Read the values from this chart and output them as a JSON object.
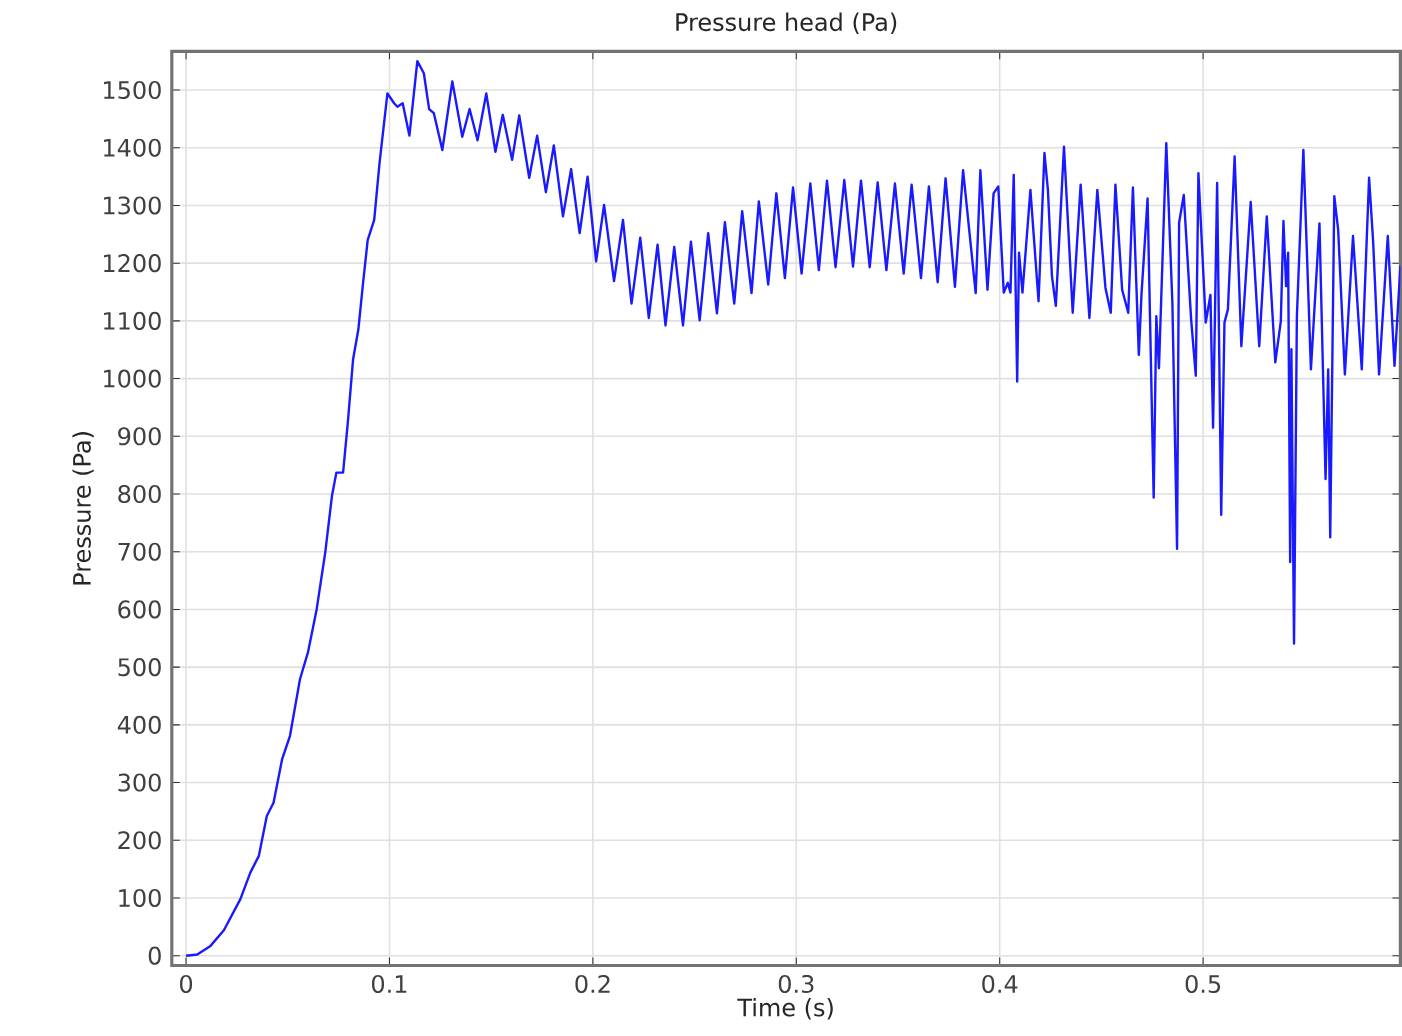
{
  "chart_data": {
    "type": "line",
    "title": "Pressure head (Pa)",
    "xlabel": "Time (s)",
    "ylabel": "Pressure (Pa)",
    "color": "#1a1aff",
    "grid": true,
    "marker": "none",
    "line_style": "solid",
    "xlim": [
      -0.007,
      0.597
    ],
    "ylim": [
      -17,
      1567
    ],
    "xticks": [
      0,
      0.1,
      0.2,
      0.3,
      0.4,
      0.5
    ],
    "yticks": [
      0,
      100,
      200,
      300,
      400,
      500,
      600,
      700,
      800,
      900,
      1000,
      1100,
      1200,
      1300,
      1400,
      1500
    ],
    "x": [
      0,
      0.0055,
      0.012,
      0.0186,
      0.0267,
      0.0316,
      0.0358,
      0.0397,
      0.043,
      0.0472,
      0.0511,
      0.056,
      0.0599,
      0.0642,
      0.0684,
      0.0717,
      0.0739,
      0.0772,
      0.0795,
      0.0821,
      0.0847,
      0.087,
      0.0893,
      0.0925,
      0.0951,
      0.099,
      0.1023,
      0.1039,
      0.1065,
      0.1098,
      0.1137,
      0.1169,
      0.1195,
      0.1218,
      0.126,
      0.1309,
      0.1358,
      0.1394,
      0.1433,
      0.1476,
      0.1521,
      0.1557,
      0.1603,
      0.1638,
      0.1687,
      0.1726,
      0.1769,
      0.1808,
      0.1853,
      0.1893,
      0.1935,
      0.1974,
      0.2016,
      0.2055,
      0.2104,
      0.2148,
      0.219,
      0.2233,
      0.2275,
      0.2318,
      0.2357,
      0.24,
      0.2443,
      0.2482,
      0.2525,
      0.2567,
      0.261,
      0.2649,
      0.2695,
      0.2734,
      0.278,
      0.2816,
      0.2862,
      0.2902,
      0.2944,
      0.2984,
      0.3026,
      0.3069,
      0.3111,
      0.3151,
      0.3193,
      0.3236,
      0.3279,
      0.3318,
      0.3361,
      0.34,
      0.3443,
      0.3485,
      0.3528,
      0.3567,
      0.3613,
      0.3652,
      0.3695,
      0.3734,
      0.378,
      0.382,
      0.3882,
      0.3905,
      0.394,
      0.397,
      0.3993,
      0.402,
      0.404,
      0.4053,
      0.4069,
      0.4086,
      0.4095,
      0.4112,
      0.4151,
      0.4191,
      0.422,
      0.4237,
      0.4257,
      0.4276,
      0.4316,
      0.4359,
      0.4398,
      0.4441,
      0.448,
      0.452,
      0.4546,
      0.4569,
      0.4602,
      0.4632,
      0.4655,
      0.4684,
      0.4697,
      0.4727,
      0.4757,
      0.477,
      0.4783,
      0.4819,
      0.4849,
      0.4872,
      0.4882,
      0.4905,
      0.4941,
      0.4964,
      0.4977,
      0.5013,
      0.5036,
      0.5049,
      0.5069,
      0.5089,
      0.5105,
      0.5122,
      0.5155,
      0.5188,
      0.5234,
      0.5276,
      0.5313,
      0.5355,
      0.5382,
      0.5395,
      0.5408,
      0.5418,
      0.5428,
      0.5434,
      0.5447,
      0.5461,
      0.5493,
      0.553,
      0.5572,
      0.5602,
      0.5615,
      0.5625,
      0.5645,
      0.5664,
      0.5697,
      0.5737,
      0.578,
      0.5816,
      0.5836,
      0.5865,
      0.5908,
      0.5941,
      0.597
    ],
    "values": [
      0,
      2,
      17,
      44,
      98,
      144,
      173,
      242,
      265,
      340,
      381,
      479,
      525,
      600,
      698,
      796,
      837,
      837,
      923,
      1033,
      1085,
      1165,
      1240,
      1275,
      1373,
      1494,
      1477,
      1471,
      1477,
      1421,
      1550,
      1529,
      1467,
      1460,
      1396,
      1515,
      1419,
      1467,
      1413,
      1494,
      1393,
      1457,
      1379,
      1456,
      1348,
      1421,
      1323,
      1404,
      1281,
      1363,
      1252,
      1350,
      1203,
      1301,
      1169,
      1275,
      1130,
      1244,
      1105,
      1232,
      1092,
      1228,
      1092,
      1237,
      1101,
      1252,
      1113,
      1271,
      1130,
      1290,
      1148,
      1307,
      1163,
      1321,
      1174,
      1331,
      1182,
      1338,
      1188,
      1343,
      1193,
      1344,
      1194,
      1343,
      1193,
      1340,
      1188,
      1338,
      1182,
      1336,
      1174,
      1333,
      1167,
      1347,
      1159,
      1361,
      1148,
      1361,
      1154,
      1321,
      1333,
      1149,
      1166,
      1149,
      1353,
      995,
      1218,
      1149,
      1327,
      1134,
      1391,
      1327,
      1177,
      1126,
      1402,
      1114,
      1336,
      1105,
      1327,
      1157,
      1114,
      1336,
      1154,
      1114,
      1331,
      1041,
      1145,
      1312,
      794,
      1108,
      1018,
      1408,
      1131,
      705,
      1270,
      1318,
      1103,
      1005,
      1356,
      1097,
      1145,
      915,
      1339,
      764,
      1097,
      1120,
      1385,
      1056,
      1306,
      1056,
      1281,
      1028,
      1099,
      1273,
      1160,
      1218,
      682,
      1051,
      541,
      1108,
      1396,
      1016,
      1269,
      826,
      1016,
      725,
      1316,
      1258,
      1007,
      1247,
      1016,
      1348,
      1237,
      1007,
      1247,
      1022,
      1195
    ]
  }
}
